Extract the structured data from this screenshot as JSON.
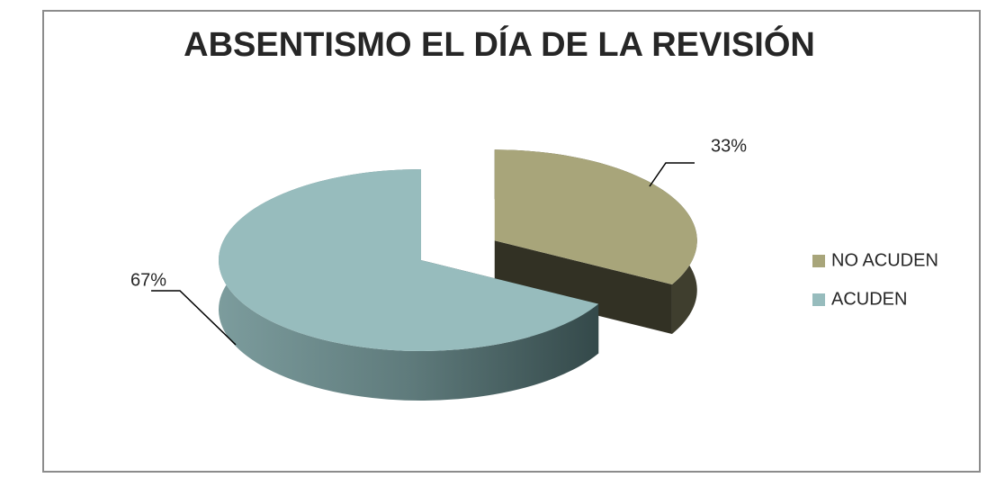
{
  "chart_data": {
    "type": "pie",
    "title": "ABSENTISMO EL DÍA DE LA REVISIÓN",
    "categories": [
      "NO ACUDEN",
      "ACUDEN"
    ],
    "values": [
      33,
      67
    ],
    "value_labels": [
      "33%",
      "67%"
    ],
    "colors": [
      "#a8a57a",
      "#97bcbd"
    ],
    "legend": "right"
  }
}
